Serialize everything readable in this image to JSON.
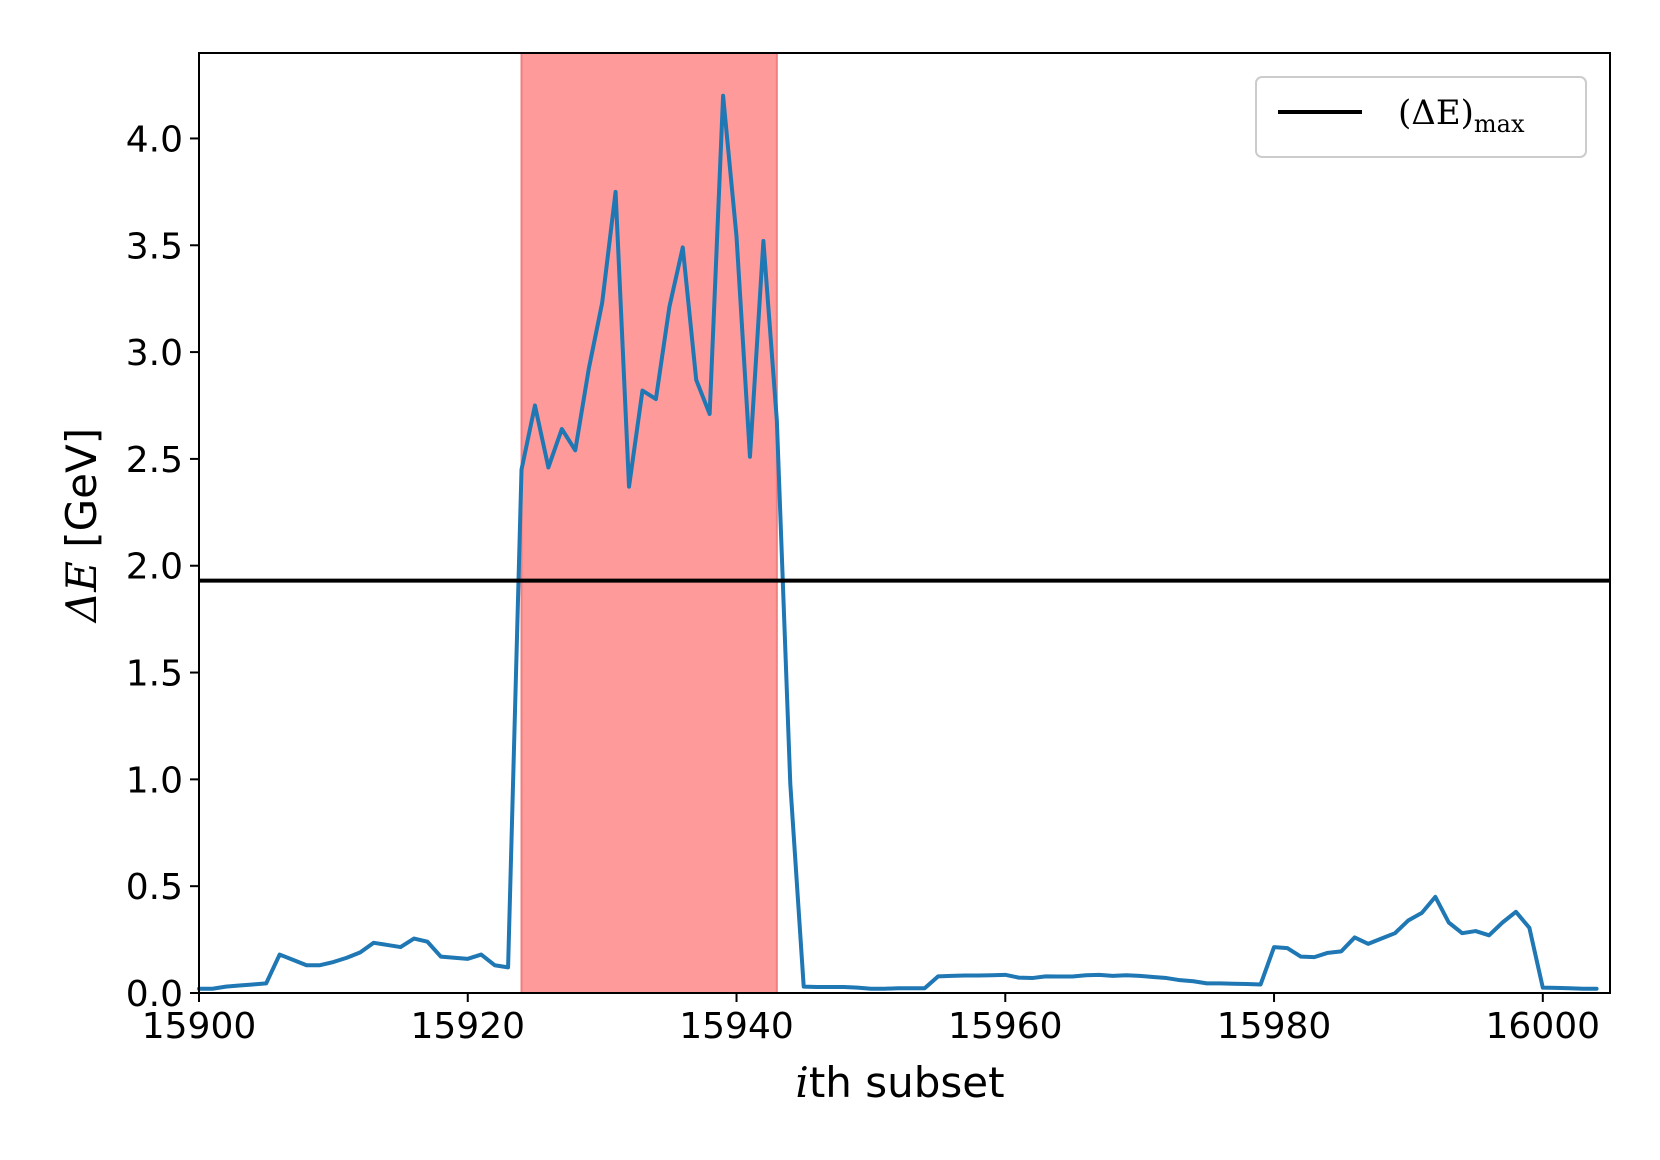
{
  "chart_data": {
    "type": "line",
    "x_range": [
      15900,
      16005
    ],
    "y_range": [
      0.0,
      4.4
    ],
    "x_ticks": [
      15900,
      15920,
      15940,
      15960,
      15980,
      16000
    ],
    "y_ticks": [
      0.0,
      0.5,
      1.0,
      1.5,
      2.0,
      2.5,
      3.0,
      3.5,
      4.0
    ],
    "x_tick_labels": [
      "15900",
      "15920",
      "15940",
      "15960",
      "15980",
      "16000"
    ],
    "y_tick_labels": [
      "0.0",
      "0.5",
      "1.0",
      "1.5",
      "2.0",
      "2.5",
      "3.0",
      "3.5",
      "4.0"
    ],
    "xlabel": {
      "math": "i",
      "text": "th subset"
    },
    "ylabel": {
      "math": "ΔE",
      "text": " [GeV]"
    },
    "grid": false,
    "legend": {
      "position": "top-right",
      "entries": [
        {
          "label": "(ΔE)",
          "subscript": "max",
          "color": "#000000"
        }
      ]
    },
    "threshold": {
      "value": 1.93,
      "color": "#000000"
    },
    "highlight": {
      "x_start": 15924,
      "x_end": 15943,
      "color": "#fe9a9a",
      "edge_color": "#f08080"
    },
    "series": [
      {
        "color": "#1f77b4",
        "x": [
          15900,
          15901,
          15902,
          15903,
          15904,
          15905,
          15906,
          15907,
          15908,
          15909,
          15910,
          15911,
          15912,
          15913,
          15914,
          15915,
          15916,
          15917,
          15918,
          15919,
          15920,
          15921,
          15922,
          15923,
          15924,
          15925,
          15926,
          15927,
          15928,
          15929,
          15930,
          15931,
          15932,
          15933,
          15934,
          15935,
          15936,
          15937,
          15938,
          15939,
          15940,
          15941,
          15942,
          15943,
          15944,
          15945,
          15946,
          15947,
          15948,
          15949,
          15950,
          15951,
          15952,
          15953,
          15954,
          15955,
          15956,
          15957,
          15958,
          15959,
          15960,
          15961,
          15962,
          15963,
          15964,
          15965,
          15966,
          15967,
          15968,
          15969,
          15970,
          15971,
          15972,
          15973,
          15974,
          15975,
          15976,
          15977,
          15978,
          15979,
          15980,
          15981,
          15982,
          15983,
          15984,
          15985,
          15986,
          15987,
          15988,
          15989,
          15990,
          15991,
          15992,
          15993,
          15994,
          15995,
          15996,
          15997,
          15998,
          15999,
          16000,
          16001,
          16002,
          16003,
          16004
        ],
        "y": [
          0.02,
          0.02,
          0.03,
          0.035,
          0.04,
          0.045,
          0.18,
          0.155,
          0.13,
          0.13,
          0.145,
          0.165,
          0.19,
          0.235,
          0.225,
          0.215,
          0.255,
          0.24,
          0.17,
          0.165,
          0.16,
          0.18,
          0.13,
          0.12,
          2.45,
          2.75,
          2.46,
          2.64,
          2.54,
          2.92,
          3.23,
          3.75,
          2.37,
          2.82,
          2.78,
          3.21,
          3.49,
          2.87,
          2.71,
          4.2,
          3.54,
          2.51,
          3.52,
          2.68,
          0.98,
          0.03,
          0.028,
          0.028,
          0.028,
          0.025,
          0.02,
          0.02,
          0.022,
          0.022,
          0.022,
          0.078,
          0.08,
          0.082,
          0.082,
          0.083,
          0.085,
          0.072,
          0.07,
          0.078,
          0.077,
          0.077,
          0.083,
          0.085,
          0.08,
          0.083,
          0.08,
          0.075,
          0.07,
          0.06,
          0.055,
          0.045,
          0.045,
          0.043,
          0.042,
          0.04,
          0.215,
          0.21,
          0.17,
          0.168,
          0.188,
          0.195,
          0.26,
          0.23,
          0.255,
          0.28,
          0.34,
          0.375,
          0.45,
          0.33,
          0.28,
          0.29,
          0.27,
          0.33,
          0.38,
          0.305,
          0.025,
          0.024,
          0.022,
          0.02,
          0.02
        ]
      }
    ]
  }
}
